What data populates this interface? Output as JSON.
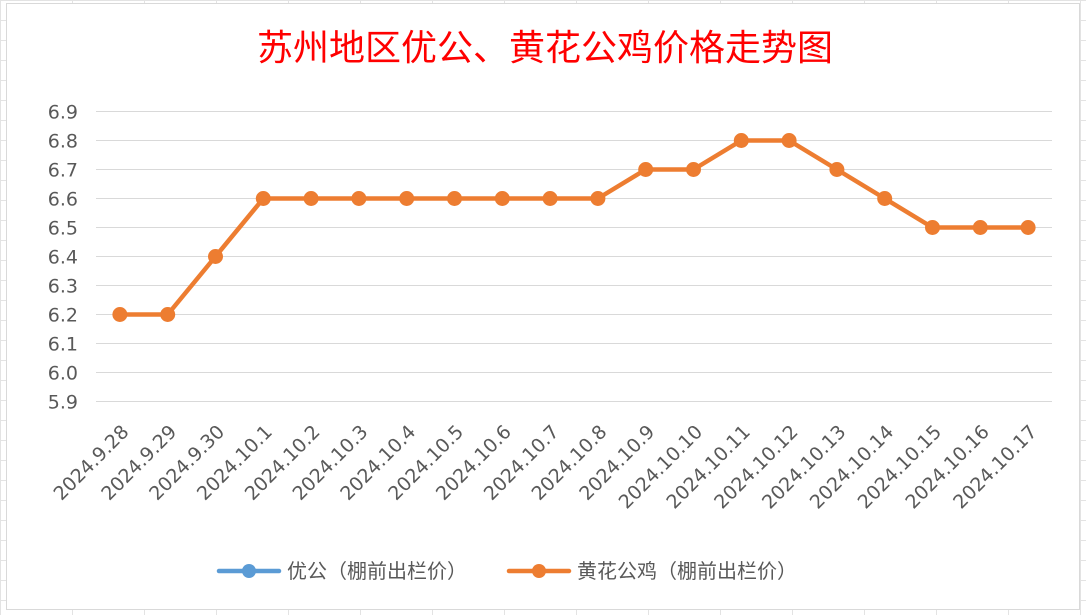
{
  "chart_data": {
    "type": "line",
    "title": "苏州地区优公、黄花公鸡价格走势图",
    "categories": [
      "2024.9.28",
      "2024.9.29",
      "2024.9.30",
      "2024.10.1",
      "2024.10.2",
      "2024.10.3",
      "2024.10.4",
      "2024.10.5",
      "2024.10.6",
      "2024.10.7",
      "2024.10.8",
      "2024.10.9",
      "2024.10.10",
      "2024.10.11",
      "2024.10.12",
      "2024.10.13",
      "2024.10.14",
      "2024.10.15",
      "2024.10.16",
      "2024.10.17"
    ],
    "series": [
      {
        "name": "优公（棚前出栏价）",
        "color": "#5b9bd5",
        "values": [
          null,
          null,
          null,
          null,
          null,
          null,
          null,
          null,
          null,
          null,
          null,
          null,
          null,
          null,
          null,
          null,
          null,
          null,
          null,
          null
        ]
      },
      {
        "name": "黄花公鸡（棚前出栏价）",
        "color": "#ed7d31",
        "values": [
          6.2,
          6.2,
          6.4,
          6.6,
          6.6,
          6.6,
          6.6,
          6.6,
          6.6,
          6.6,
          6.6,
          6.7,
          6.7,
          6.8,
          6.8,
          6.7,
          6.6,
          6.5,
          6.5,
          6.5
        ]
      }
    ],
    "yticks": [
      "5.9",
      "6.0",
      "6.1",
      "6.2",
      "6.3",
      "6.4",
      "6.5",
      "6.6",
      "6.7",
      "6.8",
      "6.9"
    ],
    "ylim": [
      5.9,
      6.9
    ],
    "grid": true,
    "legend": "bottom"
  }
}
